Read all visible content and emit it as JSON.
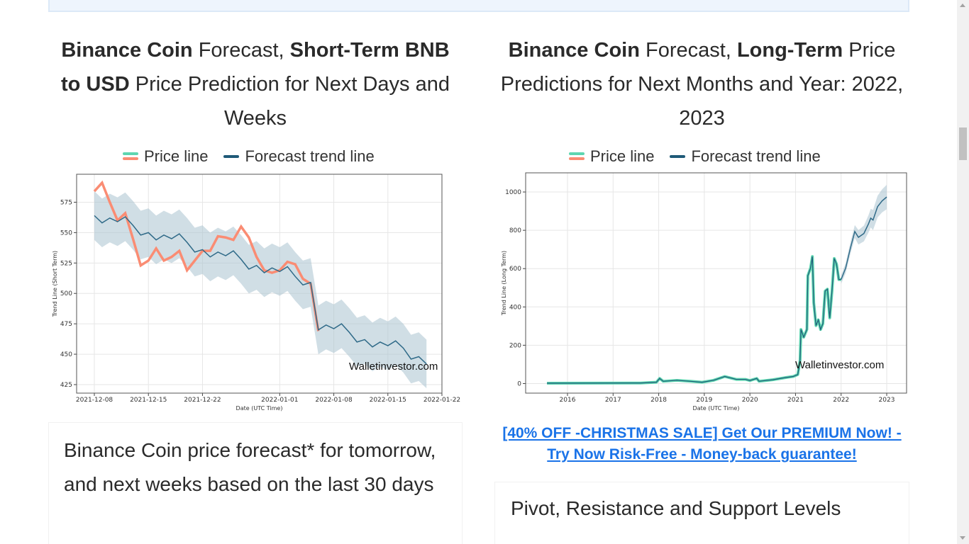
{
  "left": {
    "heading_parts": [
      {
        "t": "Binance Coin",
        "b": true
      },
      {
        "t": " Forecast, ",
        "b": false
      },
      {
        "t": "Short-Term BNB to USD",
        "b": true
      },
      {
        "t": " Price Prediction for Next Days and Weeks",
        "b": false
      }
    ],
    "paragraph": "Binance Coin price forecast* for tomorrow, and next weeks based on the last 30 days"
  },
  "right": {
    "heading_parts": [
      {
        "t": "Binance Coin",
        "b": true
      },
      {
        "t": " Forecast, ",
        "b": false
      },
      {
        "t": "Long-Term",
        "b": true
      },
      {
        "t": " Price Predictions for Next Months and Year: 2022, 2023",
        "b": false
      }
    ],
    "promo_link": "[40% OFF -CHRISTMAS SALE] Get Our PREMIUM Now! - Try Now Risk-Free - Money-back guarantee!",
    "subheading": "Pivot, Resistance and Support Levels"
  },
  "legend": {
    "price": "Price line",
    "forecast": "Forecast trend line",
    "price_color": "#fa8c73",
    "price_color2": "#5ed6b0",
    "forecast_color": "#1f5a78"
  },
  "watermark": "Walletinvestor.com",
  "chart_data": [
    {
      "type": "line",
      "title": "",
      "xlabel": "Date (UTC Time)",
      "ylabel": "Trend Line (Short Term)",
      "x_start": "2021-12-08",
      "x_ticks": [
        "2021-12-08",
        "2021-12-15",
        "2021-12-22",
        "2022-01-01",
        "2022-01-08",
        "2022-01-15",
        "2022-01-22"
      ],
      "x_tick_days": [
        0,
        7,
        14,
        24,
        31,
        38,
        45
      ],
      "xlim_days": [
        -2,
        46
      ],
      "ylim": [
        418,
        598
      ],
      "y_ticks": [
        425,
        450,
        475,
        500,
        525,
        550,
        575
      ],
      "series": [
        {
          "name": "Forecast trend line",
          "values": [
            564,
            558,
            562,
            559,
            563,
            556,
            548,
            550,
            544,
            548,
            545,
            549,
            542,
            534,
            536,
            530,
            534,
            531,
            535,
            528,
            520,
            523,
            517,
            521,
            518,
            522,
            514,
            507,
            509,
            470,
            474,
            471,
            475,
            468,
            460,
            462,
            456,
            460,
            457,
            461,
            455,
            446,
            448,
            442
          ]
        },
        {
          "name": "Price line",
          "values": [
            584,
            591,
            575,
            560,
            566,
            545,
            523,
            527,
            537,
            527,
            530,
            535,
            519,
            527,
            535,
            535,
            547,
            546,
            544,
            555,
            546,
            530,
            519,
            517,
            519,
            526,
            524,
            512,
            508,
            469
          ]
        }
      ],
      "band_halfwidth": 20
    },
    {
      "type": "line",
      "title": "",
      "xlabel": "Date (UTC Time)",
      "ylabel": "Trend Line (Long Term)",
      "x_ticks": [
        "2016",
        "2017",
        "2018",
        "2019",
        "2020",
        "2021",
        "2022",
        "2023"
      ],
      "xlim": [
        2015.1,
        2023.4
      ],
      "ylim": [
        -50,
        1100
      ],
      "y_ticks": [
        0,
        200,
        400,
        600,
        800,
        1000
      ],
      "series": [
        {
          "name": "Price line",
          "points": [
            [
              2015.55,
              0
            ],
            [
              2017.6,
              1
            ],
            [
              2017.95,
              5
            ],
            [
              2018.02,
              25
            ],
            [
              2018.1,
              10
            ],
            [
              2018.4,
              15
            ],
            [
              2018.7,
              10
            ],
            [
              2018.95,
              5
            ],
            [
              2019.2,
              15
            ],
            [
              2019.45,
              35
            ],
            [
              2019.7,
              20
            ],
            [
              2019.9,
              20
            ],
            [
              2020.0,
              14
            ],
            [
              2020.15,
              25
            ],
            [
              2020.2,
              10
            ],
            [
              2020.5,
              18
            ],
            [
              2020.8,
              30
            ],
            [
              2020.95,
              35
            ],
            [
              2021.05,
              45
            ],
            [
              2021.1,
              120
            ],
            [
              2021.12,
              280
            ],
            [
              2021.18,
              240
            ],
            [
              2021.25,
              280
            ],
            [
              2021.27,
              560
            ],
            [
              2021.33,
              600
            ],
            [
              2021.37,
              660
            ],
            [
              2021.4,
              420
            ],
            [
              2021.45,
              300
            ],
            [
              2021.5,
              330
            ],
            [
              2021.55,
              280
            ],
            [
              2021.6,
              310
            ],
            [
              2021.65,
              480
            ],
            [
              2021.7,
              490
            ],
            [
              2021.75,
              340
            ],
            [
              2021.8,
              480
            ],
            [
              2021.85,
              650
            ],
            [
              2021.9,
              620
            ],
            [
              2021.95,
              540
            ],
            [
              2022.0,
              540
            ]
          ]
        },
        {
          "name": "Forecast trend line",
          "points": [
            [
              2022.0,
              540
            ],
            [
              2022.1,
              600
            ],
            [
              2022.2,
              700
            ],
            [
              2022.3,
              790
            ],
            [
              2022.38,
              760
            ],
            [
              2022.5,
              780
            ],
            [
              2022.6,
              830
            ],
            [
              2022.65,
              860
            ],
            [
              2022.7,
              850
            ],
            [
              2022.8,
              920
            ],
            [
              2022.9,
              950
            ],
            [
              2023.0,
              970
            ]
          ]
        }
      ],
      "band_halfwidth": 45
    }
  ]
}
